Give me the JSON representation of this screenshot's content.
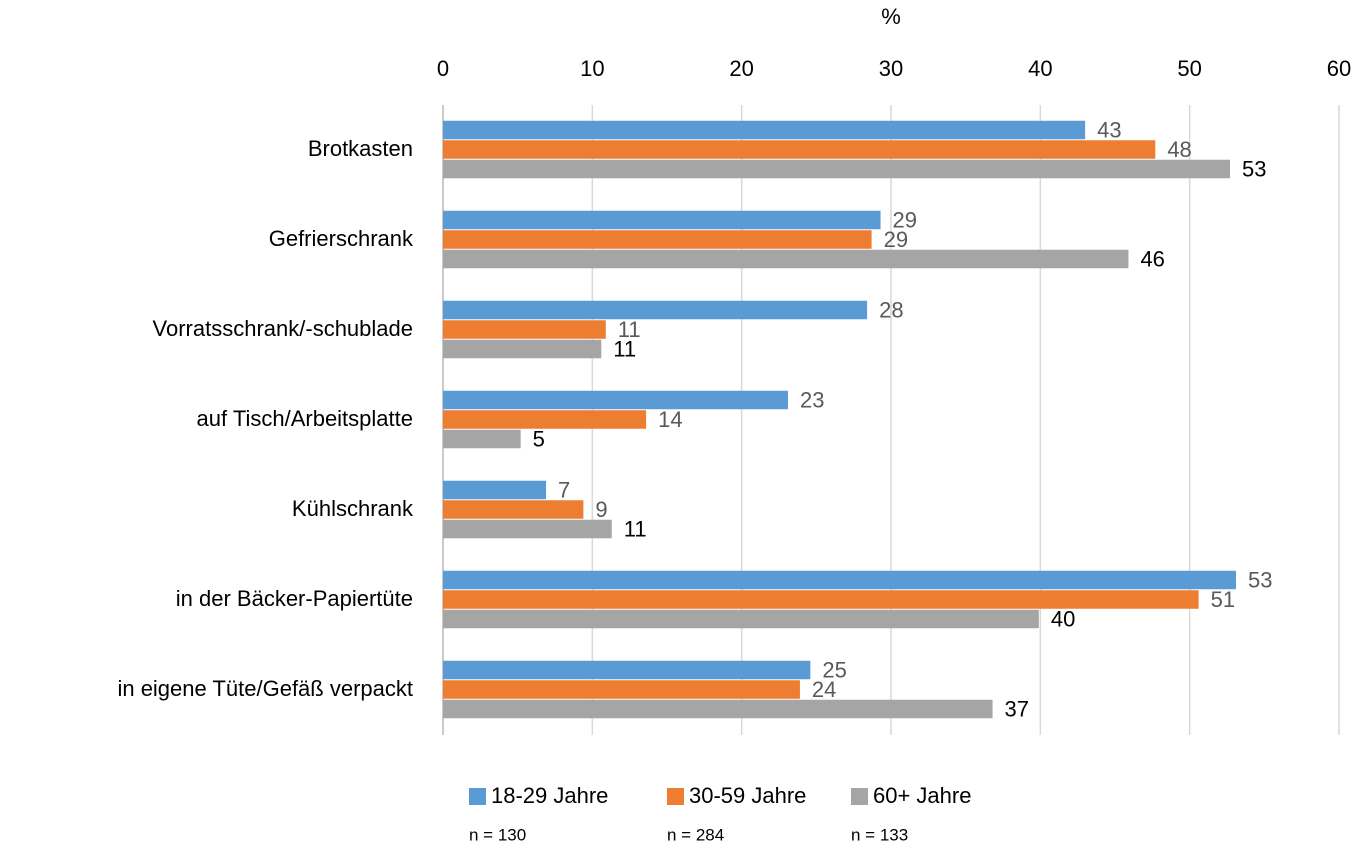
{
  "chart_data": {
    "type": "hbar",
    "xlabel": "%",
    "categories": [
      "Brotkasten",
      "Gefrierschrank",
      "Vorratsschrank/-schublade",
      "auf Tisch/Arbeitsplatte",
      "Kühlschrank",
      "in der Bäcker-Papiertüte",
      "in eigene Tüte/Gefäß verpackt"
    ],
    "series": [
      {
        "name": "18-29 Jahre",
        "color": "#5b9bd5",
        "label_color": "#595959",
        "note": "n = 130",
        "values": [
          43.0,
          29.3,
          28.4,
          23.1,
          6.9,
          53.1,
          24.6
        ],
        "value_labels": [
          "43",
          "29",
          "28",
          "23",
          "7",
          "53",
          "25"
        ]
      },
      {
        "name": "30-59 Jahre",
        "color": "#ed7d31",
        "label_color": "#595959",
        "note": "n = 284",
        "values": [
          47.7,
          28.7,
          10.9,
          13.6,
          9.4,
          50.6,
          23.9
        ],
        "value_labels": [
          "48",
          "29",
          "11",
          "14",
          "9",
          "51",
          "24"
        ]
      },
      {
        "name": "60+ Jahre",
        "color": "#a5a5a5",
        "label_color": "#000000",
        "note": "n = 133",
        "values": [
          52.7,
          45.9,
          10.6,
          5.2,
          11.3,
          39.9,
          36.8
        ],
        "value_labels": [
          "53",
          "46",
          "11",
          "5",
          "11",
          "40",
          "37"
        ]
      }
    ],
    "xlim": [
      0,
      60
    ],
    "xticks": [
      0,
      10,
      20,
      30,
      40,
      50,
      60
    ],
    "grid": true,
    "legend": "bottom"
  }
}
